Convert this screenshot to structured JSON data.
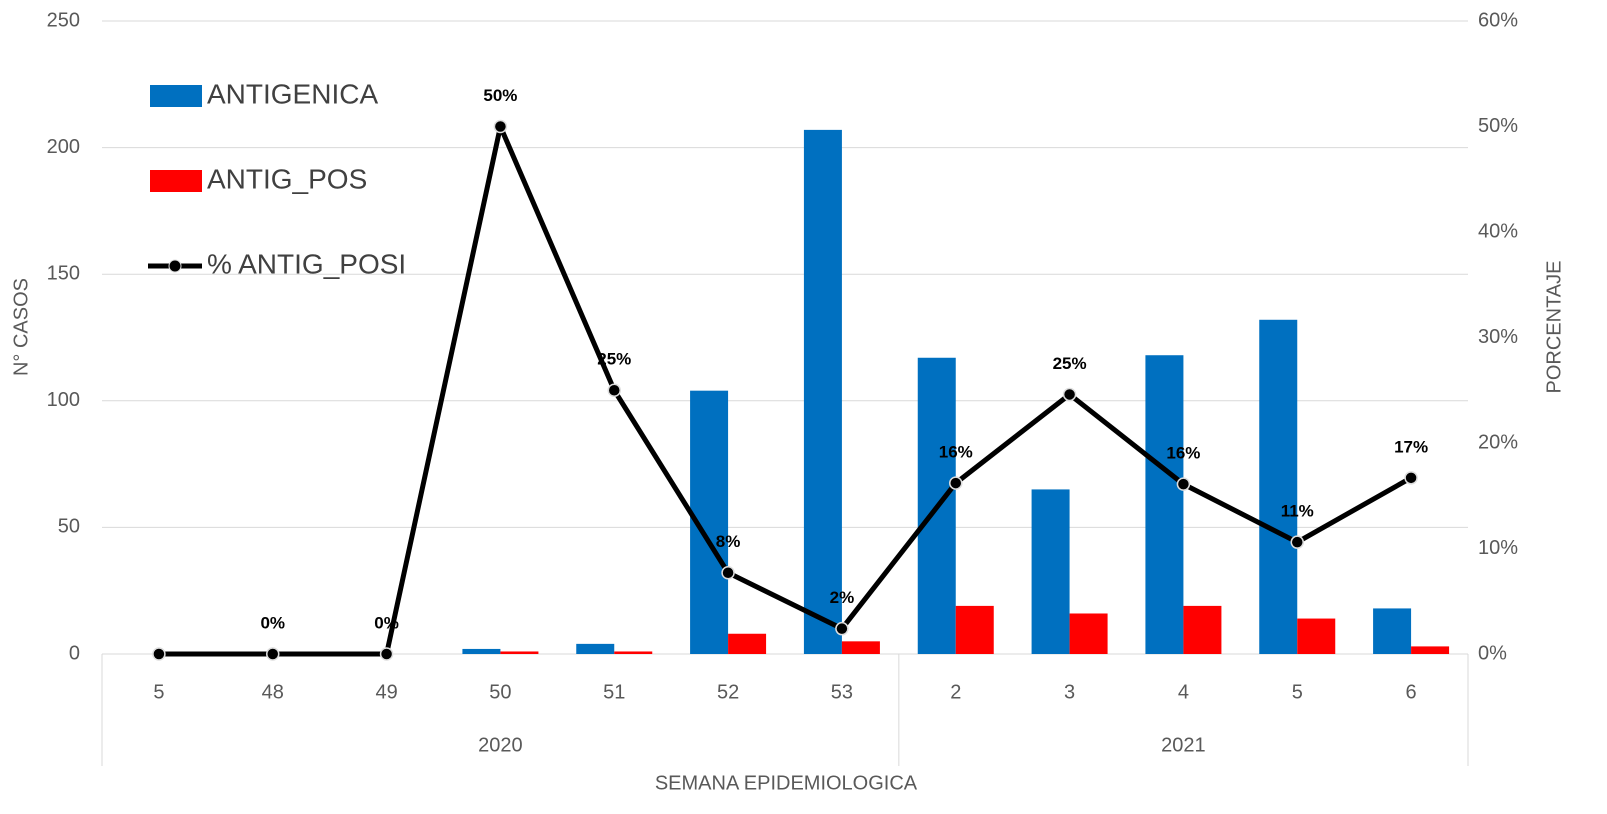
{
  "chart_data": {
    "type": "bar_line",
    "x_label": "SEMANA EPIDEMIOLOGICA",
    "y_label": "N° CASOS",
    "y2_label": "PORCENTAJE",
    "categories": [
      "5",
      "48",
      "49",
      "50",
      "51",
      "52",
      "53",
      "2",
      "3",
      "4",
      "5",
      "6"
    ],
    "groups": [
      {
        "name": "2020",
        "count": 7
      },
      {
        "name": "2021",
        "count": 5
      }
    ],
    "series": [
      {
        "name": "ANTIGENICA",
        "type": "bar",
        "color": "#0070c0",
        "values": [
          0,
          0,
          0,
          2,
          4,
          104,
          207,
          117,
          65,
          118,
          132,
          18
        ]
      },
      {
        "name": "ANTIG_POS",
        "type": "bar",
        "color": "#ff0000",
        "values": [
          0,
          0,
          0,
          1,
          1,
          8,
          5,
          19,
          16,
          19,
          14,
          3
        ]
      },
      {
        "name": "% ANTIG_POSI",
        "type": "line",
        "axis": "y2",
        "color": "#000000",
        "values": [
          0,
          0,
          0,
          50,
          25,
          7.7,
          2.4,
          16.2,
          24.6,
          16.1,
          10.6,
          16.7
        ],
        "value_labels": [
          null,
          "0%",
          "0%",
          "50%",
          "25%",
          "8%",
          "2%",
          "16%",
          "25%",
          "16%",
          "11%",
          "17%"
        ]
      }
    ],
    "ylim": [
      0,
      250
    ],
    "yticks": [
      0,
      50,
      100,
      150,
      200,
      250
    ],
    "y2lim": [
      0,
      60
    ],
    "y2ticks": [
      {
        "value": 0,
        "label": "0%"
      },
      {
        "value": 10,
        "label": "10%"
      },
      {
        "value": 20,
        "label": "20%"
      },
      {
        "value": 30,
        "label": "30%"
      },
      {
        "value": 40,
        "label": "40%"
      },
      {
        "value": 50,
        "label": "50%"
      },
      {
        "value": 60,
        "label": "60%"
      }
    ],
    "grid": true,
    "legend": "upper left"
  }
}
